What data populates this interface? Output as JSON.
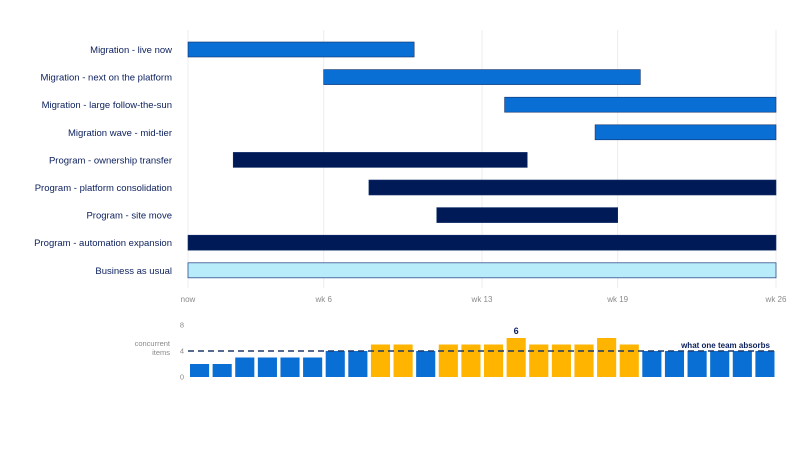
{
  "chart_data": [
    {
      "type": "gantt",
      "x_ticks": [
        {
          "value": 0,
          "label": "now"
        },
        {
          "value": 6,
          "label": "wk 6"
        },
        {
          "value": 13,
          "label": "wk 13"
        },
        {
          "value": 19,
          "label": "wk 19"
        },
        {
          "value": 26,
          "label": "wk 26"
        }
      ],
      "xlim": [
        0,
        26
      ],
      "grid": true,
      "colors": {
        "migration": "#0a6fd4",
        "program": "#001a57",
        "bau": "#b9ecfa",
        "bau_border": "#2f4d8a"
      },
      "tasks": [
        {
          "label": "Migration - live now",
          "start": 0,
          "end": 10,
          "category": "migration"
        },
        {
          "label": "Migration - next on the platform",
          "start": 6,
          "end": 20,
          "category": "migration"
        },
        {
          "label": "Migration - large follow-the-sun",
          "start": 14,
          "end": 26,
          "category": "migration"
        },
        {
          "label": "Migration wave - mid-tier",
          "start": 18,
          "end": 26,
          "category": "migration"
        },
        {
          "label": "Program - ownership transfer",
          "start": 2,
          "end": 15,
          "category": "program"
        },
        {
          "label": "Program - platform consolidation",
          "start": 8,
          "end": 26,
          "category": "program"
        },
        {
          "label": "Program - site move",
          "start": 11,
          "end": 19,
          "category": "program"
        },
        {
          "label": "Program - automation expansion",
          "start": 0,
          "end": 26,
          "category": "program"
        },
        {
          "label": "Business as usual",
          "start": 0,
          "end": 26,
          "category": "bau"
        }
      ]
    },
    {
      "type": "bar",
      "ylabel_lines": [
        "concurrent",
        "items"
      ],
      "y_ticks": [
        0,
        4,
        8
      ],
      "ylim": [
        0,
        8
      ],
      "values": [
        2,
        2,
        3,
        3,
        3,
        3,
        4,
        4,
        5,
        5,
        4,
        5,
        5,
        5,
        6,
        5,
        5,
        5,
        6,
        5,
        4,
        4,
        4,
        4,
        4,
        4
      ],
      "threshold": {
        "value": 4,
        "label": "what one team absorbs"
      },
      "peak_label": "6",
      "colors": {
        "normal": "#0a6fd4",
        "over": "#ffb400",
        "threshold": "#1f3a68"
      }
    }
  ]
}
